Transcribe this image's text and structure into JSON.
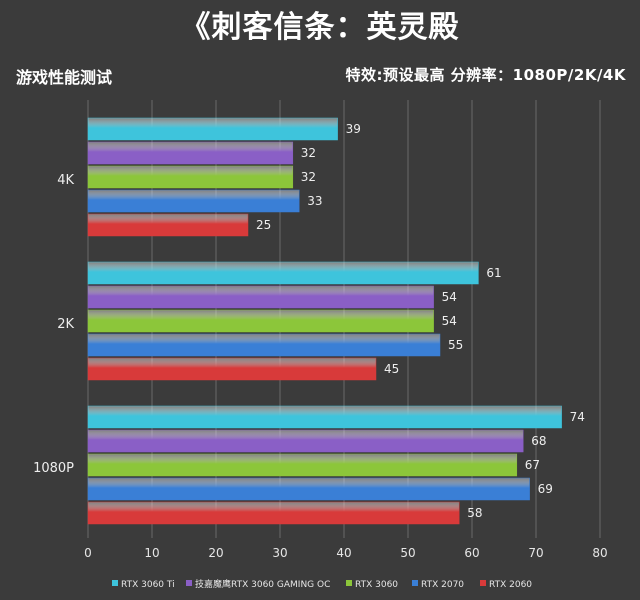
{
  "header": {
    "title": "《刺客信条：英灵殿",
    "subtitle_left": "游戏性能测试",
    "subtitle_right": "特效:预设最高   分辨率：1080P/2K/4K"
  },
  "chart_data": {
    "type": "bar",
    "orientation": "horizontal",
    "categories": [
      "4K",
      "2K",
      "1080P"
    ],
    "series": [
      {
        "name": "RTX 3060 Ti",
        "color": "#3ec4dc",
        "values": [
          39,
          61,
          74
        ]
      },
      {
        "name": "技嘉魔鹰RTX 3060 GAMING OC",
        "color": "#8a5fc6",
        "values": [
          32,
          54,
          68
        ]
      },
      {
        "name": "RTX 3060",
        "color": "#8cc63a",
        "values": [
          32,
          54,
          67
        ]
      },
      {
        "name": "RTX 2070",
        "color": "#3a7fd6",
        "values": [
          33,
          55,
          69
        ]
      },
      {
        "name": "RTX 2060",
        "color": "#d83a3a",
        "values": [
          25,
          45,
          58
        ]
      }
    ],
    "xlim": [
      0,
      80
    ],
    "xticks": [
      "0",
      "10",
      "20",
      "30",
      "40",
      "50",
      "60",
      "70",
      "80"
    ],
    "grid": true,
    "legend_position": "bottom"
  }
}
